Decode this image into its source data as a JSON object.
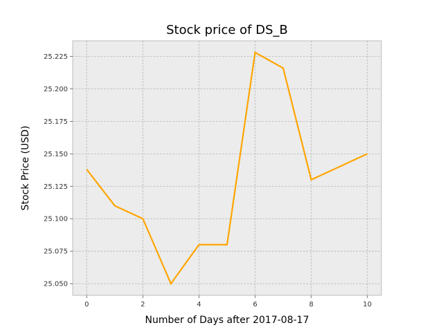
{
  "chart_data": {
    "type": "line",
    "title": "Stock price of DS_B",
    "xlabel": "Number of Days after 2017-08-17",
    "ylabel": "Stock Price (USD)",
    "x": [
      0,
      1,
      2,
      3,
      4,
      5,
      6,
      7,
      8,
      10
    ],
    "series": [
      {
        "values": [
          25.138,
          25.11,
          25.1,
          25.05,
          25.08,
          25.08,
          25.228,
          25.216,
          25.13,
          25.15
        ]
      }
    ],
    "xlim": [
      -0.5,
      10.5
    ],
    "ylim": [
      25.041,
      25.237
    ],
    "xticks": [
      0,
      2,
      4,
      6,
      8,
      10
    ],
    "yticks": [
      25.05,
      25.075,
      25.1,
      25.125,
      25.15,
      25.175,
      25.2,
      25.225
    ],
    "ytick_labels": [
      "25.050",
      "25.075",
      "25.100",
      "25.125",
      "25.150",
      "25.175",
      "25.200",
      "25.225"
    ],
    "grid": true,
    "line_color": "#ffa500",
    "plot_background": "#ececec",
    "grid_color": "#b0b0b0"
  }
}
